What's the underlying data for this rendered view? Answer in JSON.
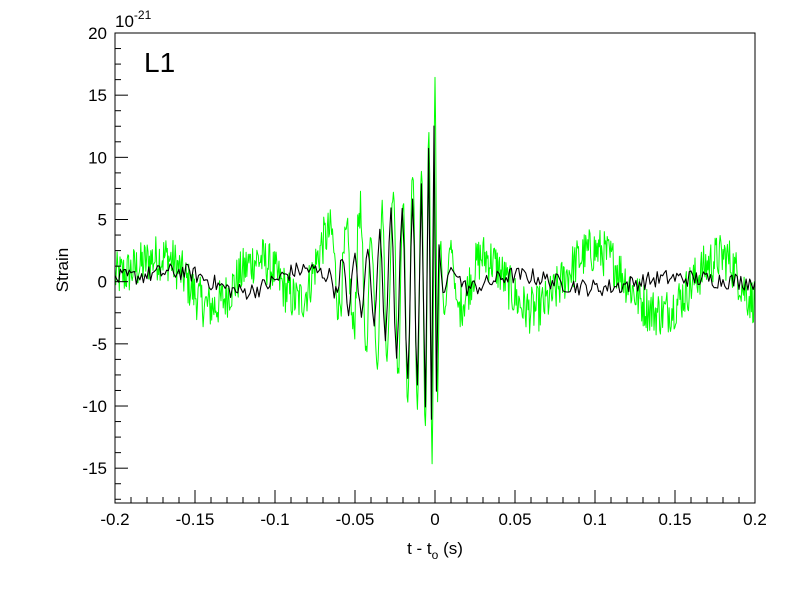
{
  "chart_data": {
    "type": "line",
    "panel_label": "L1",
    "title": "",
    "xlabel": {
      "main": "t - t",
      "subscript": "o",
      "unit": "(s)"
    },
    "ylabel": "Strain",
    "y_multiplier": {
      "base": "10",
      "exponent": "-21"
    },
    "xlim": [
      -0.2,
      0.2
    ],
    "ylim": [
      -17.8,
      20
    ],
    "x_ticks": [
      "-0.2",
      "-0.15",
      "-0.1",
      "-0.05",
      "0",
      "0.05",
      "0.1",
      "0.15",
      "0.2"
    ],
    "y_ticks": [
      "-15",
      "-10",
      "-5",
      "0",
      "5",
      "10",
      "15",
      "20"
    ],
    "grid": false,
    "legend": "none",
    "series": [
      {
        "style": "raw",
        "color": "#00ff00",
        "x": [
          -0.2,
          -0.17,
          -0.14,
          -0.11,
          -0.085,
          -0.065,
          -0.06,
          -0.055,
          -0.051,
          -0.047,
          -0.043,
          -0.04,
          -0.036,
          -0.033,
          -0.03,
          -0.026,
          -0.023,
          -0.02,
          -0.017,
          -0.014,
          -0.011,
          -0.0085,
          -0.006,
          -0.0038,
          -0.0018,
          0.0,
          0.0016,
          0.0032,
          0.006,
          0.01,
          0.014,
          0.03,
          0.06,
          0.1,
          0.14,
          0.18,
          0.2
        ],
        "y": [
          0.5,
          2.0,
          -2.0,
          1.8,
          -1.5,
          4.0,
          -1.8,
          3.5,
          -4.0,
          6.0,
          -5.5,
          3.8,
          -6.5,
          6.0,
          -6.0,
          7.5,
          -7.5,
          6.5,
          -9.5,
          9.0,
          -9.8,
          9.0,
          -12.0,
          12.5,
          -14.6,
          17.0,
          -9.0,
          3.0,
          -2.5,
          3.0,
          -2.0,
          2.0,
          -2.3,
          2.5,
          -2.5,
          2.0,
          -1.5
        ]
      },
      {
        "style": "filtered",
        "color": "#000000",
        "x": [
          -0.2,
          -0.16,
          -0.12,
          -0.08,
          -0.065,
          -0.062,
          -0.058,
          -0.054,
          -0.05,
          -0.046,
          -0.042,
          -0.038,
          -0.0345,
          -0.031,
          -0.0275,
          -0.024,
          -0.0205,
          -0.017,
          -0.014,
          -0.011,
          -0.0085,
          -0.006,
          -0.004,
          -0.0022,
          -0.0006,
          0.0009,
          0.0025,
          0.005,
          0.01,
          0.02,
          0.05,
          0.1,
          0.15,
          0.2
        ],
        "y": [
          0.3,
          0.8,
          -0.8,
          1.0,
          0.5,
          -1.0,
          1.6,
          -2.2,
          2.0,
          -2.8,
          2.8,
          -3.5,
          4.0,
          -4.5,
          6.0,
          -6.2,
          6.0,
          -7.8,
          6.5,
          -8.3,
          8.0,
          -10.0,
          10.5,
          -11.3,
          12.3,
          -9.0,
          3.0,
          -1.0,
          1.0,
          -0.5,
          0.5,
          -0.5,
          0.3,
          0.0
        ]
      }
    ]
  }
}
